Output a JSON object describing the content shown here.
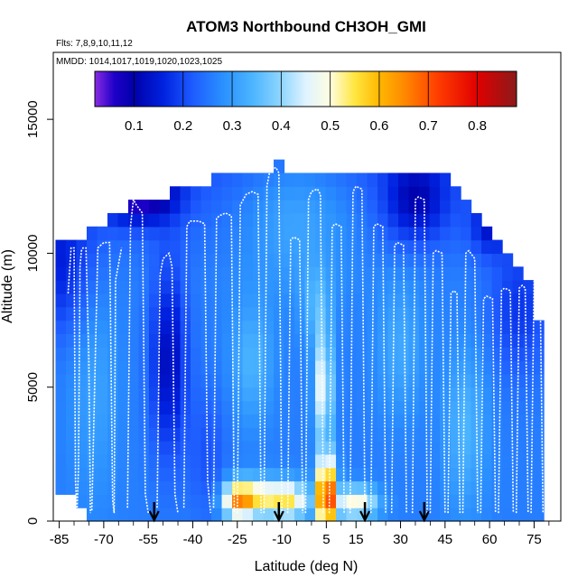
{
  "chart_data": {
    "type": "heatmap",
    "title": "ATOM3 Northbound CH3OH_GMI",
    "flights_label": "Flts: 7,8,9,10,11,12",
    "dates_label": "MMDD: 1014,1017,1019,1020,1023,1025",
    "xlabel": "Latitude (deg N)",
    "ylabel": "Altitude (m)",
    "xlim": [
      -87,
      84
    ],
    "ylim": [
      0,
      17500
    ],
    "x_ticks": [
      -85,
      -70,
      -55,
      -40,
      -25,
      -10,
      5,
      15,
      30,
      45,
      60,
      75
    ],
    "x_minor_ticks": [
      -80,
      -75,
      -65,
      -60,
      -50,
      -45,
      -35,
      -30,
      -20,
      -15,
      -5,
      0,
      10,
      20,
      25,
      35,
      40,
      50,
      55,
      65,
      70,
      80
    ],
    "y_ticks": [
      0,
      5000,
      10000,
      15000
    ],
    "colorbar": {
      "ticks": [
        "0.1",
        "0.2",
        "0.3",
        "0.4",
        "0.5",
        "0.6",
        "0.7",
        "0.8"
      ],
      "tick_values": [
        0.1,
        0.2,
        0.3,
        0.4,
        0.5,
        0.6,
        0.7,
        0.8
      ],
      "range": [
        0.02,
        0.88
      ],
      "stops": [
        {
          "v": 0.02,
          "c": "#8a2be2"
        },
        {
          "v": 0.06,
          "c": "#1e00c8"
        },
        {
          "v": 0.1,
          "c": "#0000aa"
        },
        {
          "v": 0.16,
          "c": "#0022e0"
        },
        {
          "v": 0.22,
          "c": "#1e5cff"
        },
        {
          "v": 0.28,
          "c": "#2a8fff"
        },
        {
          "v": 0.34,
          "c": "#4ab4ff"
        },
        {
          "v": 0.4,
          "c": "#8fd6ff"
        },
        {
          "v": 0.45,
          "c": "#dff3ff"
        },
        {
          "v": 0.5,
          "c": "#fffde0"
        },
        {
          "v": 0.55,
          "c": "#ffe640"
        },
        {
          "v": 0.6,
          "c": "#ffb800"
        },
        {
          "v": 0.65,
          "c": "#ff8a00"
        },
        {
          "v": 0.72,
          "c": "#ff3c00"
        },
        {
          "v": 0.8,
          "c": "#e00000"
        },
        {
          "v": 0.88,
          "c": "#8b1a1a"
        }
      ]
    },
    "arrows_lat": [
      -53,
      -11,
      18,
      38
    ],
    "cell": {
      "dlat": 3.5,
      "dalt": 500
    },
    "columns": [
      {
        "lat": -84.5,
        "top": 10500,
        "bottom": 1000
      },
      {
        "lat": -81.0,
        "top": 10500,
        "bottom": 1000
      },
      {
        "lat": -77.5,
        "top": 10500,
        "bottom": 500
      },
      {
        "lat": -74.0,
        "top": 11000,
        "bottom": 0
      },
      {
        "lat": -70.5,
        "top": 11000,
        "bottom": 0
      },
      {
        "lat": -67.0,
        "top": 11500,
        "bottom": 0
      },
      {
        "lat": -63.5,
        "top": 11500,
        "bottom": 0
      },
      {
        "lat": -60.0,
        "top": 12000,
        "bottom": 0
      },
      {
        "lat": -56.5,
        "top": 12000,
        "bottom": 0
      },
      {
        "lat": -53.0,
        "top": 12000,
        "bottom": 0
      },
      {
        "lat": -49.5,
        "top": 12000,
        "bottom": 0
      },
      {
        "lat": -46.0,
        "top": 12500,
        "bottom": 0
      },
      {
        "lat": -42.5,
        "top": 12500,
        "bottom": 0
      },
      {
        "lat": -39.0,
        "top": 12500,
        "bottom": 0
      },
      {
        "lat": -35.5,
        "top": 12500,
        "bottom": 0
      },
      {
        "lat": -32.0,
        "top": 13000,
        "bottom": 0
      },
      {
        "lat": -28.5,
        "top": 13000,
        "bottom": 0
      },
      {
        "lat": -25.0,
        "top": 13000,
        "bottom": 0
      },
      {
        "lat": -21.5,
        "top": 13000,
        "bottom": 0
      },
      {
        "lat": -18.0,
        "top": 13000,
        "bottom": 0
      },
      {
        "lat": -14.5,
        "top": 13000,
        "bottom": 0
      },
      {
        "lat": -11.0,
        "top": 13500,
        "bottom": 0
      },
      {
        "lat": -7.5,
        "top": 13000,
        "bottom": 0
      },
      {
        "lat": -4.0,
        "top": 13000,
        "bottom": 0
      },
      {
        "lat": -0.5,
        "top": 13000,
        "bottom": 0
      },
      {
        "lat": 3.0,
        "top": 13000,
        "bottom": 0
      },
      {
        "lat": 6.5,
        "top": 13000,
        "bottom": 0
      },
      {
        "lat": 10.0,
        "top": 13000,
        "bottom": 0
      },
      {
        "lat": 13.5,
        "top": 13000,
        "bottom": 0
      },
      {
        "lat": 17.0,
        "top": 13000,
        "bottom": 0
      },
      {
        "lat": 20.5,
        "top": 13000,
        "bottom": 0
      },
      {
        "lat": 24.0,
        "top": 13000,
        "bottom": 0
      },
      {
        "lat": 27.5,
        "top": 13000,
        "bottom": 0
      },
      {
        "lat": 31.0,
        "top": 13000,
        "bottom": 0
      },
      {
        "lat": 34.5,
        "top": 13000,
        "bottom": 0
      },
      {
        "lat": 38.0,
        "top": 13000,
        "bottom": 0
      },
      {
        "lat": 41.5,
        "top": 13000,
        "bottom": 0
      },
      {
        "lat": 45.0,
        "top": 13000,
        "bottom": 0
      },
      {
        "lat": 48.5,
        "top": 12500,
        "bottom": 0
      },
      {
        "lat": 52.0,
        "top": 12000,
        "bottom": 0
      },
      {
        "lat": 55.5,
        "top": 11500,
        "bottom": 0
      },
      {
        "lat": 59.0,
        "top": 11000,
        "bottom": 0
      },
      {
        "lat": 62.5,
        "top": 10500,
        "bottom": 0
      },
      {
        "lat": 66.0,
        "top": 10000,
        "bottom": 0
      },
      {
        "lat": 69.5,
        "top": 9500,
        "bottom": 0
      },
      {
        "lat": 73.0,
        "top": 9000,
        "bottom": 0
      },
      {
        "lat": 76.5,
        "top": 7500,
        "bottom": 0
      }
    ],
    "field_blobs": [
      {
        "lat": -85,
        "alt": 9500,
        "slat": 12,
        "salt": 2500,
        "a": -0.1
      },
      {
        "lat": -58,
        "alt": 12200,
        "slat": 12,
        "salt": 1000,
        "a": -0.2
      },
      {
        "lat": -48,
        "alt": 6000,
        "slat": 6,
        "salt": 3500,
        "a": -0.14
      },
      {
        "lat": -73,
        "alt": 5000,
        "slat": 8,
        "salt": 4000,
        "a": 0.05
      },
      {
        "lat": -25,
        "alt": 800,
        "slat": 5,
        "salt": 700,
        "a": 0.35
      },
      {
        "lat": -18,
        "alt": 900,
        "slat": 6,
        "salt": 700,
        "a": 0.22
      },
      {
        "lat": -8,
        "alt": 800,
        "slat": 7,
        "salt": 700,
        "a": 0.28
      },
      {
        "lat": 5,
        "alt": 1000,
        "slat": 3,
        "salt": 1400,
        "a": 0.5
      },
      {
        "lat": 4,
        "alt": 5000,
        "slat": 3,
        "salt": 2000,
        "a": 0.22
      },
      {
        "lat": 2,
        "alt": 8000,
        "slat": 5,
        "salt": 1500,
        "a": 0.08
      },
      {
        "lat": 15,
        "alt": 700,
        "slat": 7,
        "salt": 600,
        "a": 0.25
      },
      {
        "lat": -20,
        "alt": 6000,
        "slat": 7,
        "salt": 2200,
        "a": 0.08
      },
      {
        "lat": -5,
        "alt": 11500,
        "slat": 20,
        "salt": 2500,
        "a": 0.08
      },
      {
        "lat": 35,
        "alt": 12000,
        "slat": 10,
        "salt": 1500,
        "a": -0.12
      },
      {
        "lat": 30,
        "alt": 6500,
        "slat": 8,
        "salt": 2500,
        "a": 0.06
      },
      {
        "lat": 52,
        "alt": 3500,
        "slat": 7,
        "salt": 3000,
        "a": 0.08
      },
      {
        "lat": 70,
        "alt": 8000,
        "slat": 10,
        "salt": 2500,
        "a": -0.08
      },
      {
        "lat": 60,
        "alt": 11000,
        "slat": 6,
        "salt": 1000,
        "a": -0.1
      },
      {
        "lat": -35,
        "alt": 2500,
        "slat": 6,
        "salt": 2500,
        "a": -0.05
      }
    ],
    "flight_tracks": [
      {
        "x": [
          -82,
          -81,
          -80,
          -79.5,
          -79,
          -78.5,
          -78,
          -77.5,
          -77,
          -76,
          -75,
          -74.5
        ],
        "y": [
          8500,
          10200,
          10200,
          1500,
          300,
          2000,
          9500,
          10100,
          10200,
          10200,
          6000,
          300
        ]
      },
      {
        "x": [
          -74,
          -72,
          -71,
          -70,
          -68,
          -67,
          -66.5,
          -66,
          -64
        ],
        "y": [
          400,
          10200,
          10300,
          10400,
          10400,
          800,
          300,
          9000,
          10200
        ]
      },
      {
        "x": [
          -62,
          -61,
          -60,
          -59,
          -57,
          -56,
          -55
        ],
        "y": [
          500,
          11000,
          12000,
          11800,
          11500,
          1000,
          300
        ]
      },
      {
        "x": [
          -52,
          -51,
          -50,
          -48,
          -47,
          -46,
          -45
        ],
        "y": [
          500,
          9200,
          9800,
          10000,
          9500,
          1000,
          300
        ]
      },
      {
        "x": [
          -43,
          -42,
          -41,
          -38,
          -36,
          -35,
          -34
        ],
        "y": [
          500,
          11000,
          11200,
          11200,
          11100,
          1500,
          300
        ]
      },
      {
        "x": [
          -33,
          -32,
          -31,
          -29,
          -27,
          -26
        ],
        "y": [
          500,
          11300,
          11400,
          11500,
          11400,
          300
        ]
      },
      {
        "x": [
          -25,
          -24,
          -22,
          -20,
          -18,
          -17
        ],
        "y": [
          300,
          11800,
          12200,
          12300,
          12200,
          300
        ]
      },
      {
        "x": [
          -16,
          -15,
          -14,
          -12,
          -11,
          -10
        ],
        "y": [
          300,
          12500,
          13100,
          13200,
          13000,
          300
        ]
      },
      {
        "x": [
          -8,
          -7,
          -6,
          -4,
          -3
        ],
        "y": [
          300,
          10500,
          10600,
          10500,
          300
        ]
      },
      {
        "x": [
          -2,
          -1,
          0,
          2,
          3,
          4
        ],
        "y": [
          300,
          12000,
          12300,
          12400,
          12200,
          300
        ]
      },
      {
        "x": [
          6,
          7,
          8,
          10,
          11
        ],
        "y": [
          300,
          11000,
          11100,
          11000,
          300
        ]
      },
      {
        "x": [
          13,
          14,
          15,
          17,
          18
        ],
        "y": [
          300,
          12300,
          12500,
          12400,
          300
        ]
      },
      {
        "x": [
          20,
          21,
          22,
          24,
          25
        ],
        "y": [
          300,
          11000,
          11100,
          11000,
          300
        ]
      },
      {
        "x": [
          27,
          28,
          29,
          31,
          32
        ],
        "y": [
          300,
          10300,
          10400,
          10300,
          300
        ]
      },
      {
        "x": [
          34,
          35,
          36,
          38,
          39
        ],
        "y": [
          300,
          12000,
          12100,
          12000,
          300
        ]
      },
      {
        "x": [
          40,
          41,
          42,
          44,
          45
        ],
        "y": [
          300,
          10000,
          10100,
          10000,
          300
        ]
      },
      {
        "x": [
          46,
          47,
          48,
          49,
          50
        ],
        "y": [
          300,
          8500,
          8600,
          8500,
          300
        ]
      },
      {
        "x": [
          51,
          52,
          53,
          55,
          56
        ],
        "y": [
          300,
          10000,
          10100,
          9800,
          300
        ]
      },
      {
        "x": [
          57,
          58,
          59,
          61,
          62
        ],
        "y": [
          300,
          8300,
          8400,
          8300,
          300
        ]
      },
      {
        "x": [
          63,
          64,
          65,
          67,
          68
        ],
        "y": [
          300,
          8600,
          8700,
          8600,
          300
        ]
      },
      {
        "x": [
          69,
          70,
          71,
          72,
          73
        ],
        "y": [
          300,
          8700,
          8800,
          8700,
          300
        ]
      },
      {
        "x": [
          74,
          75,
          76,
          77,
          78
        ],
        "y": [
          300,
          9000,
          9100,
          8900,
          300
        ]
      }
    ]
  }
}
